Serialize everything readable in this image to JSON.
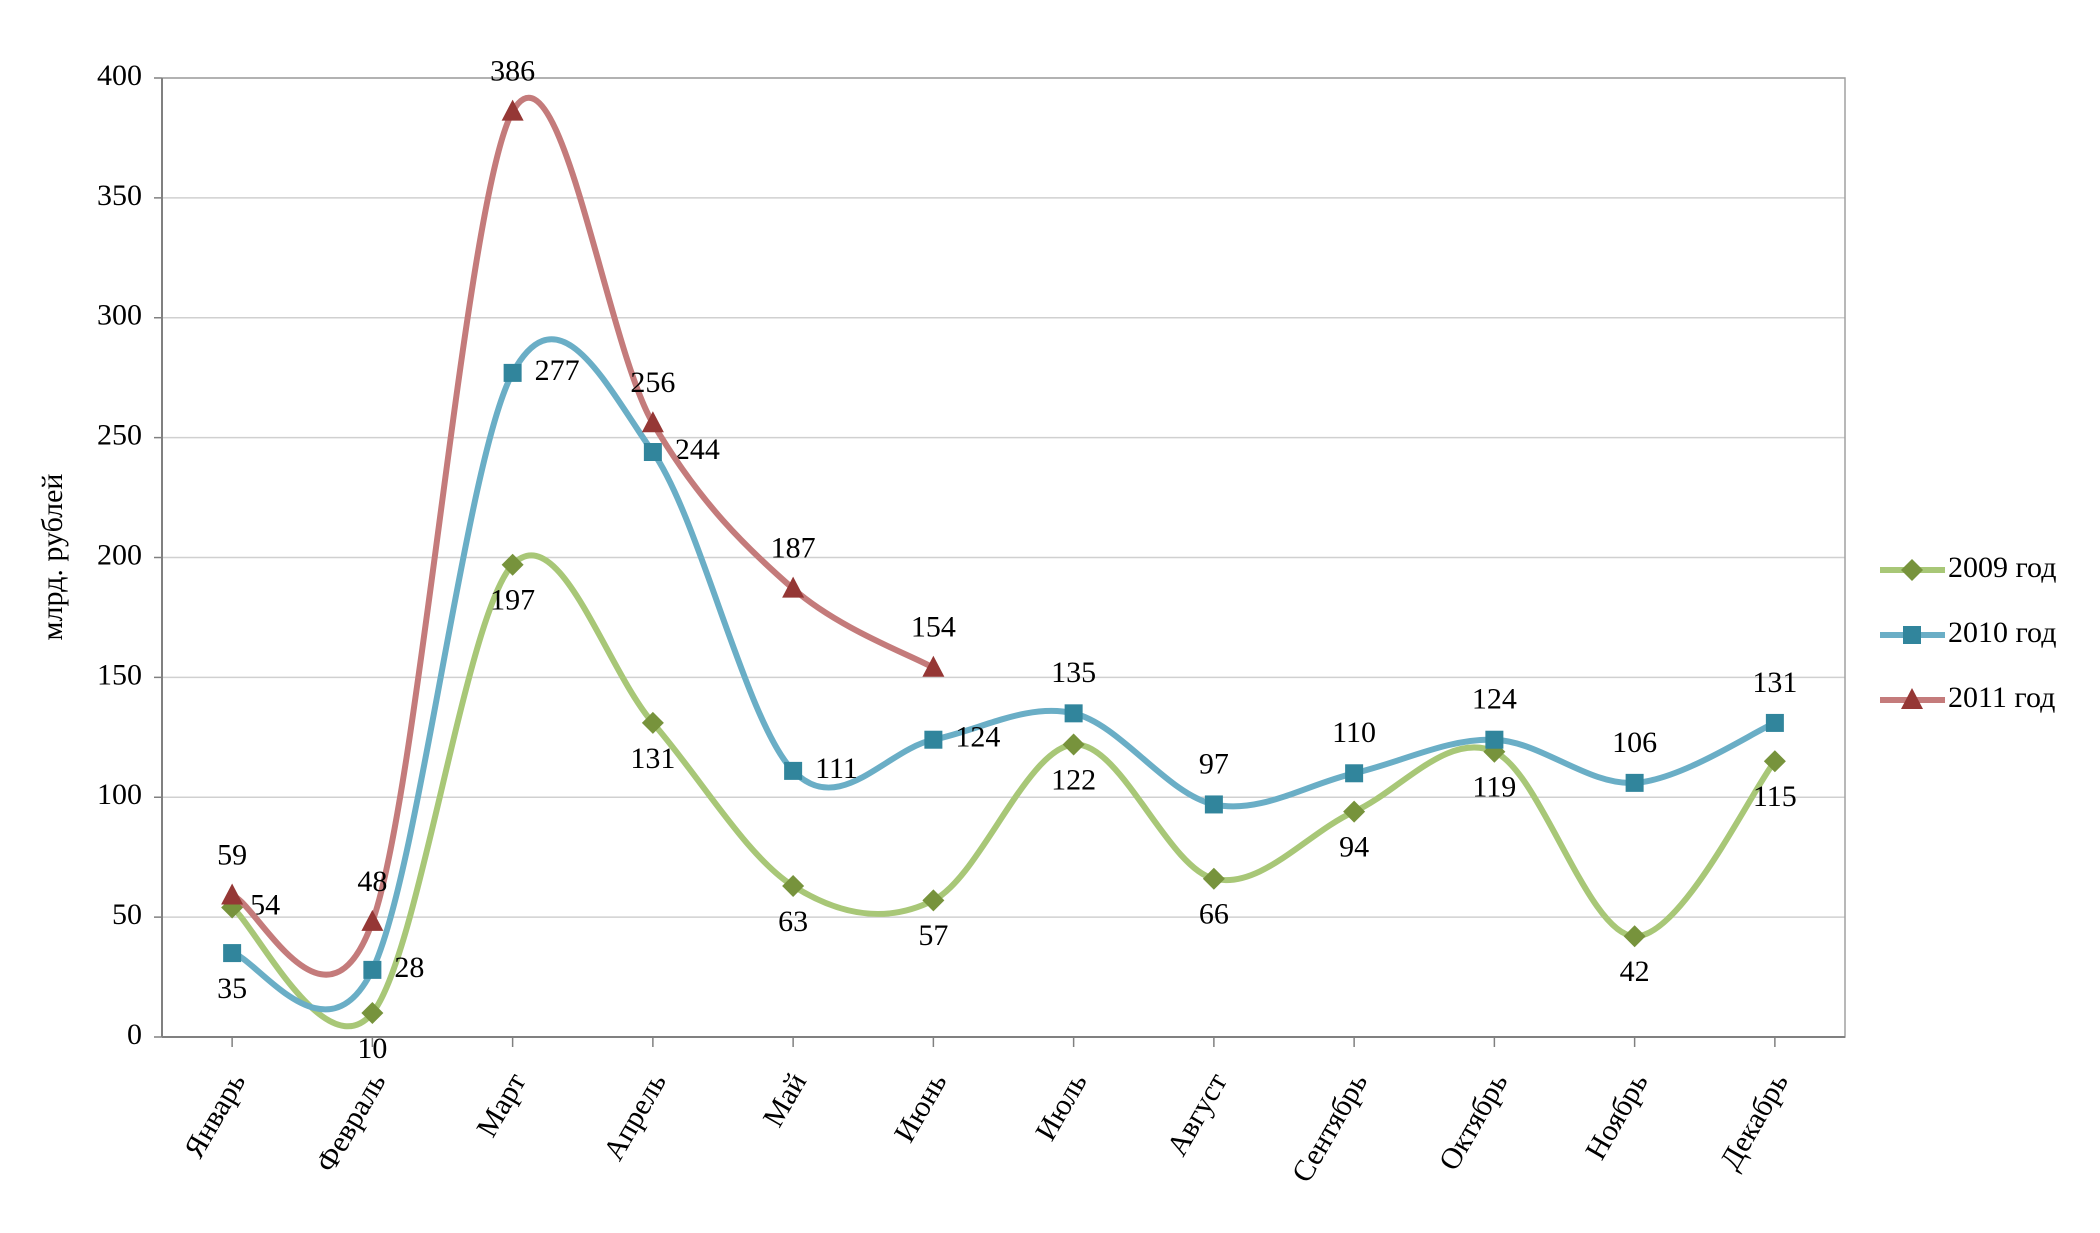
{
  "chart_data": {
    "type": "line",
    "y_label": "млрд. рублей",
    "categories": [
      "Январь",
      "Февраль",
      "Март",
      "Апрель",
      "Май",
      "Июнь",
      "Июль",
      "Август",
      "Сентябрь",
      "Октябрь",
      "Ноябрь",
      "Декабрь"
    ],
    "series": [
      {
        "name": "2009 год",
        "color": "#a8c777",
        "marker_color": "#77933c",
        "label_color": "#1f4a1f",
        "marker": "diamond",
        "values": [
          54,
          10,
          197,
          131,
          63,
          57,
          122,
          66,
          94,
          119,
          42,
          115
        ]
      },
      {
        "name": "2010 год",
        "color": "#6aaec6",
        "marker_color": "#31859c",
        "label_color": "#000080",
        "marker": "square",
        "values": [
          35,
          28,
          277,
          244,
          111,
          124,
          135,
          97,
          110,
          124,
          106,
          131
        ]
      },
      {
        "name": "2011 год",
        "color": "#c47b7b",
        "marker_color": "#953735",
        "label_color": "#8b0000",
        "marker": "triangle",
        "values": [
          59,
          48,
          386,
          256,
          187,
          154,
          null,
          null,
          null,
          null,
          null,
          null
        ]
      }
    ],
    "ylim": [
      0,
      400
    ],
    "yticks": [
      0,
      50,
      100,
      150,
      200,
      250,
      300,
      350,
      400
    ],
    "grid": true,
    "smooth": true,
    "legend": "right"
  }
}
